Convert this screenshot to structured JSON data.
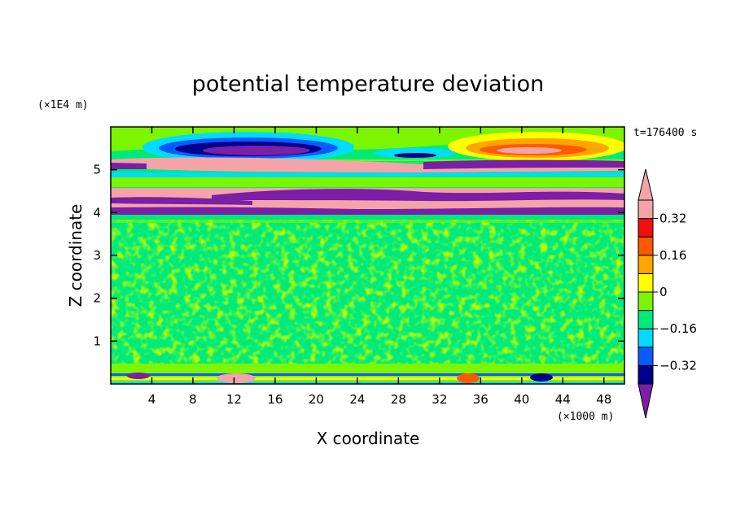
{
  "chart_data": {
    "type": "heatmap",
    "title": "potential temperature deviation",
    "xlabel": "X coordinate",
    "ylabel": "Z coordinate",
    "x_unit": "(×1000 m)",
    "y_unit": "(×1E4 m)",
    "time_label": "t=176400 s",
    "xlim": [
      0,
      50
    ],
    "ylim": [
      0,
      6
    ],
    "x_ticks": [
      4,
      8,
      12,
      16,
      20,
      24,
      28,
      32,
      36,
      40,
      44,
      48
    ],
    "y_ticks": [
      1,
      2,
      3,
      4,
      5
    ],
    "colorbar": {
      "levels": [
        -0.4,
        -0.32,
        -0.24,
        -0.16,
        -0.08,
        0,
        0.08,
        0.16,
        0.24,
        0.32,
        0.4
      ],
      "labels": [
        "0.32",
        "0.16",
        "0",
        "-0.16",
        "-0.32"
      ],
      "label_values": [
        0.32,
        0.16,
        0,
        -0.16,
        -0.32
      ],
      "colors": [
        "#7a1fa6",
        "#00008b",
        "#0a5bff",
        "#00dcff",
        "#00ea7c",
        "#7cf500",
        "#ffff00",
        "#ffa500",
        "#ff5a00",
        "#ee1010",
        "#f4a4a8"
      ],
      "extend": "both"
    }
  }
}
